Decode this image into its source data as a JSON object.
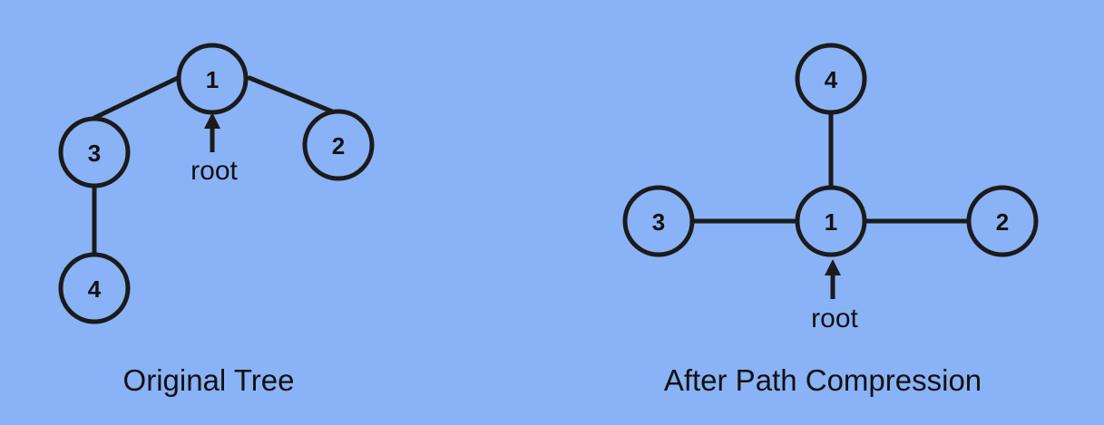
{
  "original_tree": {
    "caption": "Original Tree",
    "root_pointer": "root",
    "nodes": [
      "1",
      "2",
      "3",
      "4"
    ],
    "edges": [
      [
        "1",
        "3"
      ],
      [
        "1",
        "2"
      ],
      [
        "3",
        "4"
      ]
    ]
  },
  "compressed_tree": {
    "caption": "After Path Compression",
    "root_pointer": "root",
    "nodes": [
      "1",
      "2",
      "3",
      "4"
    ],
    "edges": [
      [
        "1",
        "3"
      ],
      [
        "1",
        "2"
      ],
      [
        "1",
        "4"
      ]
    ]
  },
  "colors": {
    "background": "#8ab2f6",
    "stroke": "#1b1b1b",
    "text": "#111111"
  }
}
